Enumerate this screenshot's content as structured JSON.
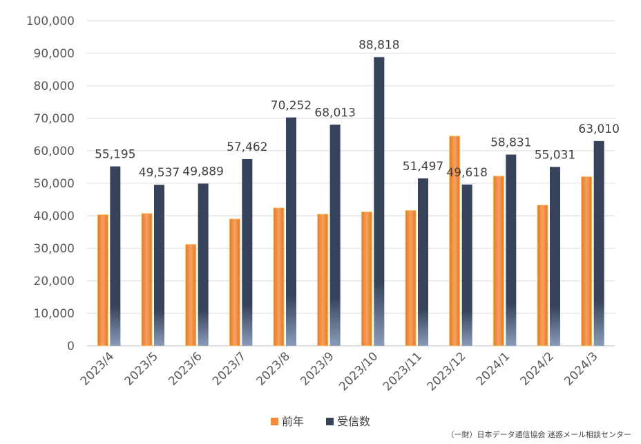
{
  "chart_data": {
    "type": "bar",
    "categories": [
      "2023/4",
      "2023/5",
      "2023/6",
      "2023/7",
      "2023/8",
      "2023/9",
      "2023/10",
      "2023/11",
      "2023/12",
      "2024/1",
      "2024/2",
      "2024/3"
    ],
    "series": [
      {
        "name": "前年",
        "values": [
          40300,
          40700,
          31200,
          39000,
          42400,
          40500,
          41200,
          41600,
          64500,
          52200,
          43300,
          52000
        ],
        "color": "#f08a3c"
      },
      {
        "name": "受信数",
        "values": [
          55195,
          49537,
          49889,
          57462,
          70252,
          68013,
          88818,
          51497,
          49618,
          58831,
          55031,
          63010
        ],
        "color": "#3a4a64"
      }
    ],
    "data_labels": [
      "55,195",
      "49,537",
      "49,889",
      "57,462",
      "70,252",
      "68,013",
      "88,818",
      "51,497",
      "49,618",
      "58,831",
      "55,031",
      "63,010"
    ],
    "y_ticks": [
      "0",
      "10,000",
      "20,000",
      "30,000",
      "40,000",
      "50,000",
      "60,000",
      "70,000",
      "80,000",
      "90,000",
      "100,000"
    ],
    "ylim": [
      0,
      100000
    ],
    "grid": true,
    "legend_position": "bottom"
  },
  "source": "（一財）日本データ通信協会 迷惑メール相談センター"
}
